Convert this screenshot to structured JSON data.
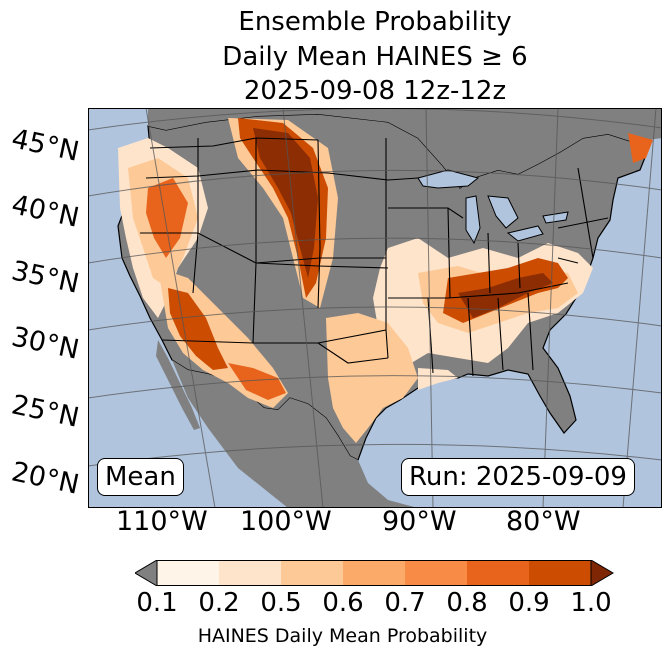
{
  "title": {
    "line1": "Ensemble Probability",
    "line2": "Daily Mean HAINES ≥ 6",
    "line3": "2025-09-08 12z-12z"
  },
  "lat_labels": [
    "45°N",
    "40°N",
    "35°N",
    "30°N",
    "25°N",
    "20°N"
  ],
  "lon_labels": [
    "110°W",
    "100°W",
    "90°W",
    "80°W"
  ],
  "badges": {
    "left": "Mean",
    "right": "Run: 2025-09-09"
  },
  "colorbar": {
    "ticks": [
      "0.1",
      "0.2",
      "0.5",
      "0.6",
      "0.7",
      "0.8",
      "0.9",
      "1.0"
    ],
    "label": "HAINES Daily Mean Probability",
    "colors": [
      "#fff4e8",
      "#fee4cb",
      "#fdc997",
      "#fcaa6a",
      "#f88b45",
      "#e8641c",
      "#cc4c02",
      "#8c2d04"
    ],
    "under_color": "#808080",
    "over_color": "#7f2704"
  },
  "map_colors": {
    "ocean": "#b0c4de",
    "land_low": "#808080",
    "border": "#000000",
    "grid": "#555555"
  }
}
